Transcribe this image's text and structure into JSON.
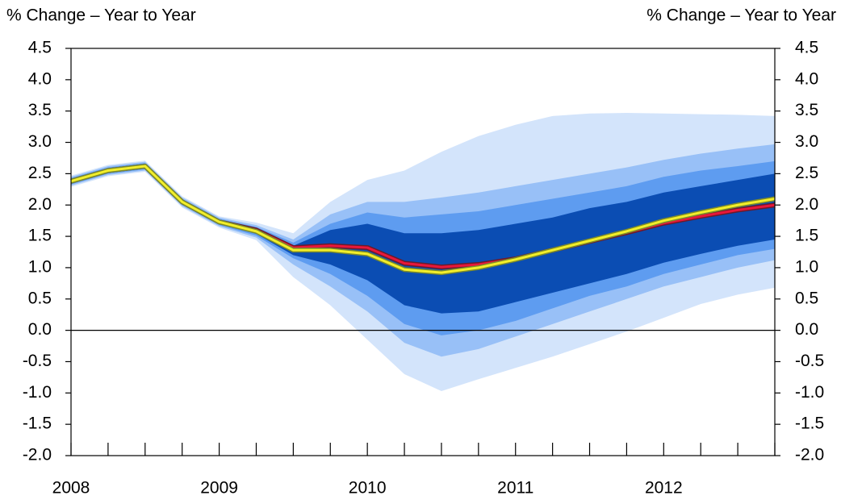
{
  "chart_data": {
    "type": "line",
    "y_label": "% Change – Year to Year",
    "y2_label": "% Change – Year to Year",
    "categories": [
      "2008",
      null,
      null,
      null,
      "2009",
      null,
      null,
      null,
      "2010",
      null,
      null,
      null,
      "2011",
      null,
      null,
      null,
      "2012",
      null,
      null,
      null
    ],
    "ylim": [
      -2.0,
      4.5
    ],
    "yticks": [
      {
        "value": 4.0,
        "label": "4.0"
      },
      4.5,
      3.5,
      {
        "value": 3.0,
        "label": "3.0"
      },
      2.5,
      {
        "value": 2.0,
        "label": "2.0"
      },
      1.5,
      {
        "value": 1.0,
        "label": "1.0"
      },
      0.5,
      {
        "value": 0,
        "label": "0.0"
      },
      -0.5,
      {
        "value": -1.0,
        "label": "-1.0"
      },
      -1.5,
      {
        "value": -2.0,
        "label": "-2.0"
      }
    ],
    "y2lim": [
      -2.0,
      4.5
    ],
    "y2ticks": [
      {
        "value": 4.0,
        "label": "4.0"
      },
      4.5,
      3.5,
      {
        "value": 3.0,
        "label": "3.0"
      },
      2.5,
      {
        "value": 2.0,
        "label": "2.0"
      },
      1.5,
      {
        "value": 1.0,
        "label": "1.0"
      },
      0.5,
      {
        "value": 0,
        "label": "0.0"
      },
      -0.5,
      {
        "value": -1.0,
        "label": "-1.0"
      },
      -1.5,
      {
        "value": -2.0,
        "label": "-2.0"
      }
    ],
    "hlines": [
      0
    ],
    "series": [
      {
        "color": "#d3e4fb",
        "upper": [
          2.47,
          2.64,
          2.71,
          2.14,
          1.82,
          1.72,
          1.55,
          2.05,
          2.4,
          2.55,
          2.85,
          3.1,
          3.28,
          3.42,
          3.46,
          3.47,
          3.46,
          3.45,
          3.44,
          3.42
        ],
        "lower": [
          2.29,
          2.46,
          2.53,
          1.96,
          1.64,
          1.44,
          0.85,
          0.4,
          -0.15,
          -0.7,
          -0.97,
          -0.78,
          -0.6,
          -0.42,
          -0.22,
          -0.02,
          0.2,
          0.42,
          0.57,
          0.68
        ]
      },
      {
        "color": "#98c0f7",
        "upper": [
          2.45,
          2.62,
          2.69,
          2.12,
          1.8,
          1.68,
          1.45,
          1.85,
          2.05,
          2.05,
          2.12,
          2.2,
          2.3,
          2.4,
          2.5,
          2.6,
          2.72,
          2.82,
          2.9,
          2.97
        ],
        "lower": [
          2.31,
          2.48,
          2.55,
          1.98,
          1.66,
          1.48,
          1.05,
          0.7,
          0.3,
          -0.2,
          -0.42,
          -0.3,
          -0.1,
          0.1,
          0.3,
          0.5,
          0.7,
          0.85,
          1.0,
          1.12
        ]
      },
      {
        "color": "#5e9cf0",
        "upper": [
          2.43,
          2.6,
          2.67,
          2.1,
          1.78,
          1.65,
          1.4,
          1.7,
          1.88,
          1.8,
          1.85,
          1.9,
          2.0,
          2.1,
          2.2,
          2.3,
          2.45,
          2.55,
          2.62,
          2.7
        ],
        "lower": [
          2.33,
          2.5,
          2.57,
          2.0,
          1.68,
          1.51,
          1.15,
          0.9,
          0.55,
          0.1,
          -0.08,
          0.0,
          0.15,
          0.35,
          0.55,
          0.7,
          0.9,
          1.05,
          1.2,
          1.3
        ]
      },
      {
        "color": "#0b4db3",
        "upper": [
          2.41,
          2.58,
          2.65,
          2.08,
          1.76,
          1.62,
          1.35,
          1.6,
          1.7,
          1.55,
          1.55,
          1.6,
          1.7,
          1.8,
          1.95,
          2.05,
          2.2,
          2.3,
          2.4,
          2.5
        ],
        "lower": [
          2.35,
          2.52,
          2.59,
          2.02,
          1.7,
          1.54,
          1.2,
          1.05,
          0.8,
          0.4,
          0.27,
          0.3,
          0.45,
          0.6,
          0.75,
          0.9,
          1.08,
          1.22,
          1.35,
          1.45
        ]
      },
      {
        "color": "#e8173a",
        "values": [
          2.38,
          2.55,
          2.62,
          2.05,
          1.73,
          1.6,
          1.32,
          1.35,
          1.32,
          1.07,
          1.01,
          1.05,
          1.14,
          1.28,
          1.42,
          1.56,
          1.71,
          1.82,
          1.92,
          2.0
        ]
      },
      {
        "color": "#f2ee2a",
        "values": [
          2.38,
          2.55,
          2.62,
          2.05,
          1.73,
          1.58,
          1.28,
          1.28,
          1.22,
          0.97,
          0.92,
          1.0,
          1.13,
          1.28,
          1.43,
          1.58,
          1.75,
          1.88,
          2.0,
          2.1
        ]
      }
    ]
  }
}
